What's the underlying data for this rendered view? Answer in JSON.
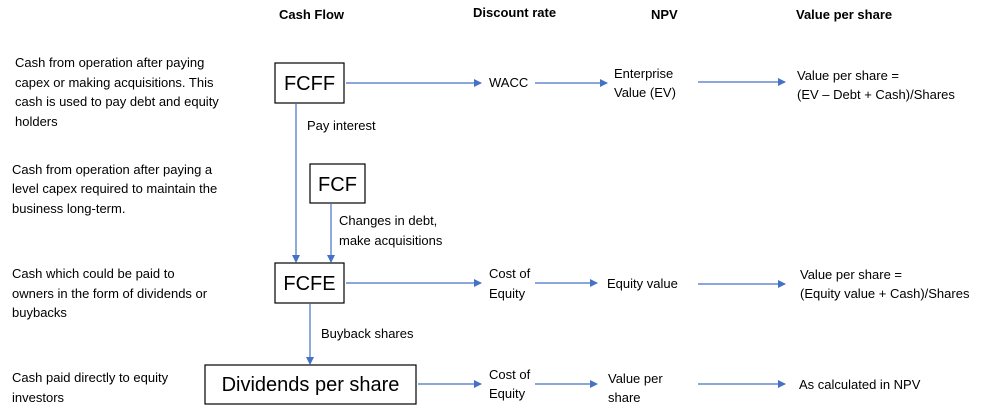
{
  "headers": {
    "cash_flow": "Cash Flow",
    "discount_rate": "Discount rate",
    "npv": "NPV",
    "value_per_share": "Value per share"
  },
  "descriptions": {
    "fcff": [
      "Cash from operation after paying",
      "capex or making acquisitions. This",
      "cash is used to pay debt and equity",
      "holders"
    ],
    "fcf": [
      "Cash from operation after paying a",
      "level capex required to maintain the",
      "business long-term."
    ],
    "fcfe": [
      "Cash which could be paid to",
      "owners in the form of dividends or",
      "buybacks"
    ],
    "dps": [
      "Cash paid directly to equity",
      "investors"
    ]
  },
  "boxes": {
    "fcff": "FCFF",
    "fcf": "FCF",
    "fcfe": "FCFE",
    "dps": "Dividends per share"
  },
  "edge_labels": {
    "pay_interest": "Pay interest",
    "changes_debt": [
      "Changes in debt,",
      "make acquisitions"
    ],
    "buyback": "Buyback shares"
  },
  "rows": {
    "fcff": {
      "discount": [
        "WACC"
      ],
      "npv": [
        "Enterprise",
        "Value (EV)"
      ],
      "value": [
        "Value per share =",
        "(EV – Debt + Cash)/Shares"
      ]
    },
    "fcfe": {
      "discount": [
        "Cost of",
        "Equity"
      ],
      "npv": [
        "Equity value"
      ],
      "value": [
        "Value per share =",
        "(Equity value + Cash)/Shares"
      ]
    },
    "dps": {
      "discount": [
        "Cost of",
        "Equity"
      ],
      "npv": [
        "Value per",
        "share"
      ],
      "value": [
        "As calculated in NPV"
      ]
    }
  },
  "colors": {
    "arrow": "#4472C4",
    "text": "#000000",
    "box_border": "#000000"
  }
}
